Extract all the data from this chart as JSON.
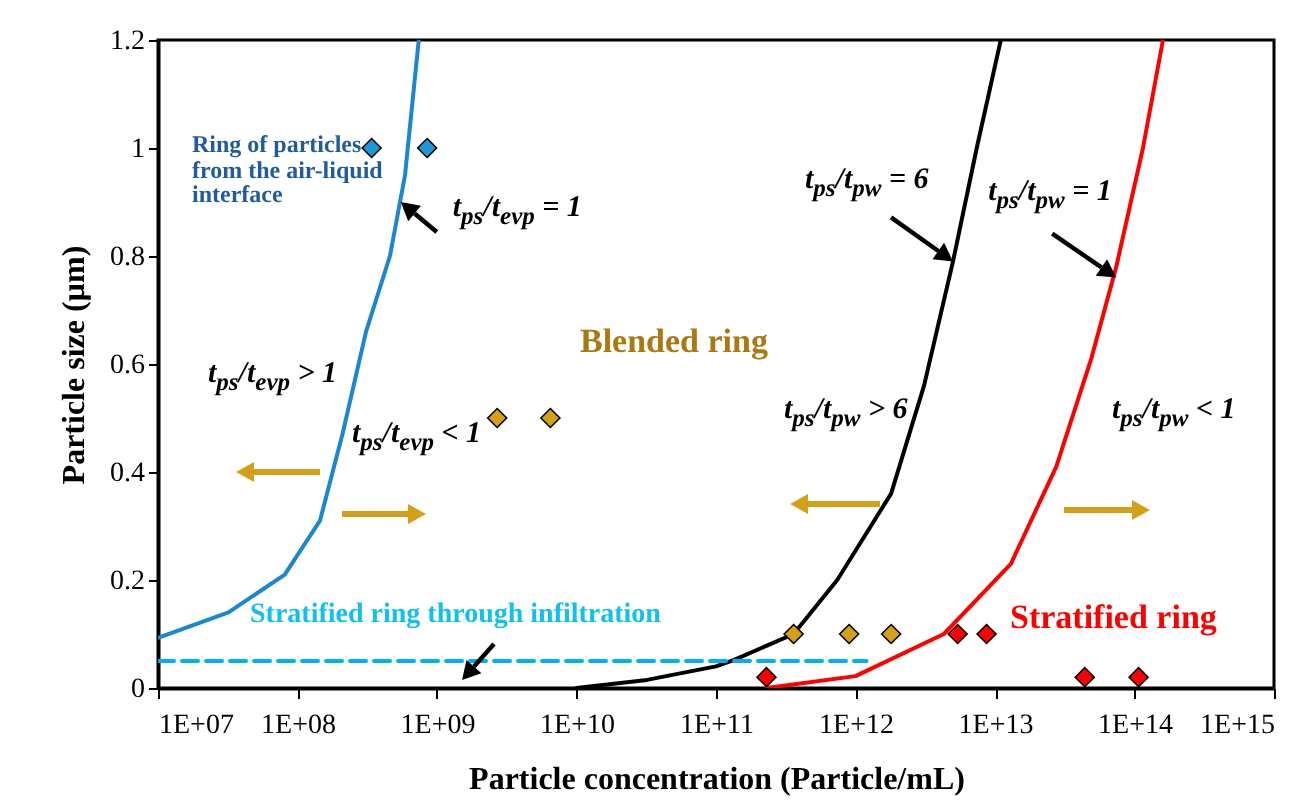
{
  "chart_data": {
    "type": "line",
    "xlabel": "Particle concentration (Particle/mL)",
    "ylabel": "Particle size (µm)",
    "log": "x",
    "grid": false,
    "xlim": [
      10000000.0,
      1000000000000000.0
    ],
    "xticks": [
      {
        "value": 10000000.0,
        "label": "1E+07"
      },
      {
        "value": 100000000.0,
        "label": "1E+08"
      },
      {
        "value": 1000000000.0,
        "label": "1E+09"
      },
      {
        "value": 10000000000.0,
        "label": "1E+10"
      },
      {
        "value": 100000000000.0,
        "label": "1E+11"
      },
      {
        "value": 1000000000000.0,
        "label": "1E+12"
      },
      {
        "value": 10000000000000.0,
        "label": "1E+13"
      },
      {
        "value": 100000000000000.0,
        "label": "1E+14"
      },
      {
        "value": 1000000000000000.0,
        "label": "1E+15"
      }
    ],
    "ylim": [
      0,
      1.2
    ],
    "yticks": [
      0,
      0.2,
      0.4,
      0.6,
      0.8,
      1,
      1.2
    ],
    "series": [
      {
        "color": "#1a87d0",
        "line_style": "solid",
        "x": [
          10000000.0,
          32000000.0,
          81000000.0,
          145000000.0,
          210000000.0,
          310000000.0,
          460000000.0,
          590000000.0,
          740000000.0
        ],
        "values": [
          0.093,
          0.14,
          0.21,
          0.31,
          0.47,
          0.66,
          0.8,
          0.95,
          1.2
        ]
      },
      {
        "color": "#000000",
        "line_style": "solid",
        "x": [
          10000000000.0,
          32000000000.0,
          100000000000.0,
          135000000000.0,
          360000000000.0,
          740000000000.0,
          1800000000000.0,
          3100000000000.0,
          5000000000000.0,
          7400000000000.0,
          11000000000000.0
        ],
        "values": [
          0,
          0.015,
          0.04,
          0.052,
          0.1,
          0.2,
          0.36,
          0.56,
          0.79,
          1.0,
          1.2
        ]
      },
      {
        "color": "#ff0000",
        "line_style": "solid",
        "x": [
          230000000000.0,
          1000000000000.0,
          4300000000000.0,
          13000000000000.0,
          27500000000000.0,
          49000000000000.0,
          74000000000000.0,
          115000000000000.0,
          160000000000000.0
        ],
        "values": [
          0,
          0.022,
          0.1,
          0.23,
          0.41,
          0.61,
          0.78,
          1.0,
          1.2
        ]
      },
      {
        "color": "#00b0f0",
        "line_style": "dashed",
        "x": [
          10000000.0,
          1200000000000.0
        ],
        "values": [
          0.05,
          0.05
        ]
      },
      {
        "type": "scatter",
        "marker": "diamond",
        "color": "#2196d8",
        "x": [
          340000000.0,
          850000000.0
        ],
        "values": [
          1,
          1
        ]
      },
      {
        "type": "scatter",
        "marker": "diamond",
        "color": "#d4a017",
        "x": [
          2700000000.0,
          6500000000.0,
          360000000000.0,
          900000000000.0,
          1800000000000.0
        ],
        "values": [
          0.5,
          0.5,
          0.1,
          0.1,
          0.1
        ]
      },
      {
        "type": "scatter",
        "marker": "diamond",
        "color": "#ff0000",
        "x": [
          5400000000000.0,
          8700000000000.0,
          230000000000.0,
          44000000000000.0,
          107000000000000.0
        ],
        "values": [
          0.1,
          0.1,
          0.02,
          0.02,
          0.02
        ]
      }
    ],
    "annotations": [
      "Ring of particles from the air-liquid interface",
      {
        "text": "t$_{ps}$/t$_{evp}$ = 1",
        "x": 550000000.0,
        "y": 0.9
      },
      "Blended ring",
      "t$_{ps}$/t$_{evp}$ > 1",
      "t$_{ps}$/t$_{evp}$ < 1",
      {
        "text": "t$_{ps}$/t$_{pw}$ = 6",
        "x": 5000000000000.0,
        "y": 0.79
      },
      {
        "text": "t$_{ps}$/t$_{pw}$ = 1",
        "x": 74000000000000.0,
        "y": 0.76
      },
      "t$_{ps}$/t$_{pw}$ > 6",
      "t$_{ps}$/t$_{pw}$ < 1",
      "Stratified ring through infiltration",
      "Stratified ring"
    ]
  }
}
